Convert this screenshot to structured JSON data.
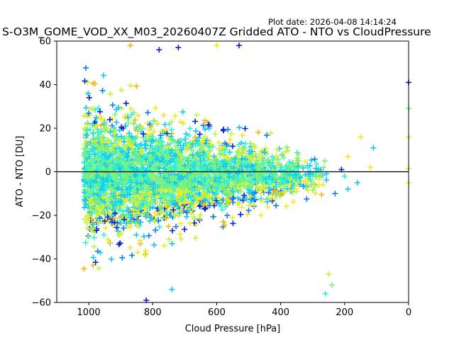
{
  "chart_data": {
    "type": "scatter",
    "title": "S-O3M_GOME_VOD_XX_M03_20260407Z Gridded ATO - NTO vs CloudPressure",
    "plot_date": "Plot date: 2026-04-08 14:14:24",
    "xlabel": "Cloud Pressure [hPa]",
    "ylabel": "ATO - NTO [DU]",
    "xlim": [
      1100,
      0
    ],
    "ylim": [
      -60,
      60
    ],
    "x_ticks": [
      1000,
      800,
      600,
      400,
      200,
      0
    ],
    "y_ticks": [
      -60,
      -40,
      -20,
      0,
      20,
      40,
      60
    ],
    "reference_line_y": 0,
    "marker": "+",
    "density_colors": [
      "#0a1fd6",
      "#0a7cff",
      "#12c8f0",
      "#2ef2d8",
      "#7cf27a",
      "#c8f23c",
      "#f2e81e",
      "#f5b50c"
    ],
    "cloud": {
      "x_min": 1015,
      "x_max": 250,
      "core_spread_high": 30,
      "core_spread_low": 6,
      "outer_spread_high": 48,
      "outer_spread_low": 10,
      "center": -2
    },
    "outliers": [
      {
        "x": 0,
        "y": 41,
        "c": 0
      },
      {
        "x": 0,
        "y": 29,
        "c": 4
      },
      {
        "x": 0,
        "y": 16,
        "c": 6
      },
      {
        "x": 0,
        "y": 1.5,
        "c": 6
      },
      {
        "x": 0,
        "y": -5,
        "c": 6
      },
      {
        "x": 110,
        "y": 11,
        "c": 2
      },
      {
        "x": 150,
        "y": 16,
        "c": 6
      },
      {
        "x": 120,
        "y": 2,
        "c": 6
      },
      {
        "x": 190,
        "y": 7,
        "c": 6
      },
      {
        "x": 200,
        "y": -2,
        "c": 3
      },
      {
        "x": 210,
        "y": 1,
        "c": 0
      },
      {
        "x": 160,
        "y": -5,
        "c": 2
      },
      {
        "x": 190,
        "y": -8,
        "c": 2
      },
      {
        "x": 230,
        "y": -10,
        "c": 1
      },
      {
        "x": 250,
        "y": -47,
        "c": 5
      },
      {
        "x": 240,
        "y": -52,
        "c": 4
      },
      {
        "x": 260,
        "y": -56,
        "c": 3
      },
      {
        "x": 780,
        "y": 56,
        "c": 0
      },
      {
        "x": 720,
        "y": 57,
        "c": 0
      },
      {
        "x": 530,
        "y": 58,
        "c": 0
      },
      {
        "x": 820,
        "y": -59,
        "c": 0
      },
      {
        "x": 740,
        "y": -54,
        "c": 2
      },
      {
        "x": 870,
        "y": 58,
        "c": 7
      },
      {
        "x": 600,
        "y": 58,
        "c": 6
      }
    ]
  }
}
